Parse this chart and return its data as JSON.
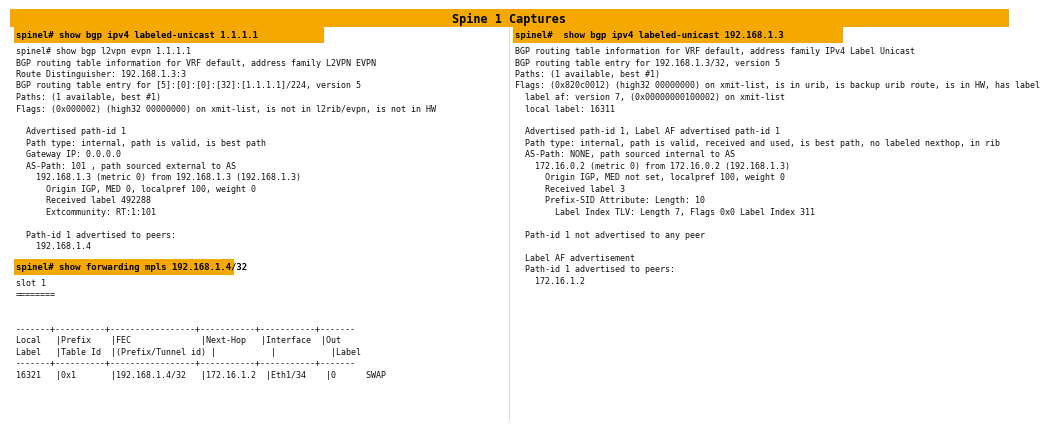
{
  "title": "Spine 1 Captures",
  "title_bg": "#f5a800",
  "title_color": "#000000",
  "bg_color": "#ffffff",
  "left_cmd": "spinel# show bgp ipv4 labeled-unicast 1.1.1.1",
  "right_cmd": "spinel#  show bgp ipv4 labeled-unicast 192.168.1.3",
  "left_cmd_bg": "#f5a800",
  "right_cmd_bg": "#f5a800",
  "left_text": [
    "spinel# show bgp l2vpn evpn 1.1.1.1",
    "BGP routing table information for VRF default, address family L2VPN EVPN",
    "Route Distinguisher: 192.168.1.3:3",
    "BGP routing table entry for [5]:[0]:[0]:[32]:[1.1.1.1]/224, version 5",
    "Paths: (1 available, best #1)",
    "Flags: (0x000002) (high32 00000000) on xmit-list, is not in l2rib/evpn, is not in HW",
    "",
    "  Advertised path-id 1",
    "  Path type: internal, path is valid, is best path",
    "  Gateway IP: 0.0.0.0",
    "  AS-Path: 101 , path sourced external to AS",
    "    192.168.1.3 (metric 0) from 192.168.1.3 (192.168.1.3)",
    "      Origin IGP, MED 0, localpref 100, weight 0",
    "      Received label 492288",
    "      Extcommunity: RT:1:101",
    "",
    "  Path-id 1 advertised to peers:",
    "    192.168.1.4"
  ],
  "bottom_cmd": "spinel# show forwarding mpls 192.168.1.4/32",
  "bottom_cmd_bg": "#f5a800",
  "bottom_text": [
    "slot 1",
    "========",
    "",
    "",
    "-------+----------+-----------------+-----------+-----------+-------",
    "Local   |Prefix    |FEC              |Next-Hop   |Interface  |Out",
    "Label   |Table Id  |(Prefix/Tunnel id) |           |           |Label",
    "-------+----------+-----------------+-----------+-----------+-------",
    "16321   |0x1       |192.168.1.4/32   |172.16.1.2  |Eth1/34    |0      SWAP"
  ],
  "right_text": [
    "BGP routing table information for VRF default, address family IPv4 Label Unicast",
    "BGP routing table entry for 192.168.1.3/32, version 5",
    "Paths: (1 available, best #1)",
    "Flags: (0x820c0012) (high32 00000000) on xmit-list, is in urib, is backup urib route, is in HW, has label",
    "  label af: version 7, (0x00000000100002) on xmit-list",
    "  local label: 16311",
    "",
    "  Advertised path-id 1, Label AF advertised path-id 1",
    "  Path type: internal, path is valid, received and used, is best path, no labeled nexthop, in rib",
    "  AS-Path: NONE, path sourced internal to AS",
    "    172.16.0.2 (metric 0) from 172.16.0.2 (192.168.1.3)",
    "      Origin IGP, MED not set, localpref 100, weight 0",
    "      Received label 3",
    "      Prefix-SID Attribute: Length: 10",
    "        Label Index TLV: Length 7, Flags 0x0 Label Index 311",
    "",
    "  Path-id 1 not advertised to any peer",
    "",
    "  Label AF advertisement",
    "  Path-id 1 advertised to peers:",
    "    172.16.1.2"
  ],
  "font_size": 6.0,
  "cmd_font_size": 6.5,
  "title_fontsize": 8.5
}
